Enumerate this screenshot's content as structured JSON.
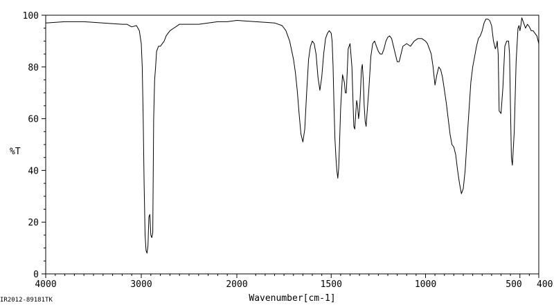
{
  "footer_id": "IR2012-89181TK",
  "chart_data": {
    "type": "line",
    "title": "",
    "xlabel": "Wavenumber[cm-1]",
    "ylabel": "%T",
    "xlim": [
      4000,
      400
    ],
    "ylim": [
      0,
      100
    ],
    "x_reversed": true,
    "grid": false,
    "x_ticks": [
      4000,
      3000,
      2000,
      1500,
      1000,
      500,
      400
    ],
    "x_tick_labels": [
      "4000",
      "3000",
      "2000",
      "1500",
      "1000",
      "500",
      "400"
    ],
    "y_ticks": [
      0,
      20,
      40,
      60,
      80,
      100
    ],
    "y_tick_labels": [
      "0",
      "20",
      "40",
      "60",
      "80",
      "100"
    ],
    "line_color": "#000000",
    "series": [
      {
        "x": [
          4000,
          3800,
          3600,
          3400,
          3200,
          3150,
          3100,
          3050,
          3020,
          3000,
          2990,
          2980,
          2970,
          2960,
          2950,
          2940,
          2930,
          2920,
          2910,
          2900,
          2890,
          2880,
          2870,
          2860,
          2850,
          2840,
          2820,
          2800,
          2780,
          2760,
          2740,
          2700,
          2600,
          2500,
          2400,
          2300,
          2200,
          2100,
          2000,
          1900,
          1800,
          1760,
          1740,
          1720,
          1700,
          1690,
          1680,
          1670,
          1660,
          1650,
          1640,
          1630,
          1620,
          1610,
          1600,
          1590,
          1580,
          1570,
          1560,
          1550,
          1540,
          1530,
          1520,
          1510,
          1500,
          1495,
          1490,
          1485,
          1480,
          1475,
          1470,
          1465,
          1460,
          1455,
          1450,
          1440,
          1430,
          1425,
          1420,
          1410,
          1400,
          1390,
          1380,
          1375,
          1370,
          1365,
          1360,
          1355,
          1350,
          1345,
          1340,
          1335,
          1330,
          1325,
          1320,
          1315,
          1310,
          1300,
          1290,
          1280,
          1270,
          1260,
          1250,
          1240,
          1230,
          1220,
          1210,
          1200,
          1190,
          1180,
          1170,
          1160,
          1150,
          1140,
          1130,
          1120,
          1100,
          1080,
          1060,
          1040,
          1020,
          1000,
          990,
          980,
          970,
          960,
          950,
          940,
          930,
          920,
          910,
          900,
          890,
          880,
          870,
          860,
          850,
          840,
          830,
          820,
          810,
          800,
          790,
          780,
          770,
          760,
          750,
          740,
          730,
          720,
          710,
          700,
          690,
          680,
          670,
          660,
          650,
          640,
          630,
          625,
          620,
          615,
          610,
          600,
          590,
          580,
          570,
          560,
          555,
          550,
          545,
          540,
          530,
          520,
          510,
          505,
          500,
          495,
          490,
          480,
          470,
          460,
          450,
          440,
          430,
          420,
          410,
          400
        ],
        "y": [
          97,
          97.5,
          97.5,
          97,
          96.5,
          96.5,
          95.5,
          96,
          94,
          89,
          80,
          60,
          35,
          15,
          9,
          8,
          11,
          22,
          23,
          15,
          14,
          16,
          60,
          75,
          80,
          86,
          88,
          88,
          89,
          90,
          92,
          94,
          96.5,
          96.5,
          96.5,
          97,
          97.5,
          97.5,
          98,
          97.5,
          97,
          96,
          94,
          90,
          83,
          78,
          71,
          62,
          54,
          51,
          56,
          70,
          83,
          88,
          90,
          89,
          85,
          76,
          71,
          76,
          85,
          91,
          93,
          94,
          93,
          90,
          80,
          65,
          52,
          45,
          40,
          37,
          41,
          52,
          64,
          77,
          74,
          70,
          70,
          87,
          89,
          80,
          57,
          56,
          62,
          67,
          65,
          60,
          63,
          70,
          79,
          81,
          75,
          65,
          59,
          57,
          62,
          72,
          84,
          89,
          90,
          88,
          86,
          85,
          85,
          87,
          90,
          91.5,
          92,
          91,
          88,
          85,
          82,
          82,
          85,
          88,
          89,
          88,
          90,
          91,
          91,
          90,
          89,
          87,
          85,
          80,
          73,
          77,
          80,
          79,
          76,
          71,
          66,
          60,
          54,
          50,
          49,
          46,
          40,
          35,
          31,
          33,
          40,
          52,
          63,
          74,
          80,
          84,
          88,
          91,
          92,
          94,
          97,
          98.5,
          98.5,
          98,
          96,
          90,
          87,
          88,
          90,
          85,
          63,
          62,
          72,
          88,
          90,
          90,
          85,
          65,
          45,
          42,
          55,
          82,
          95,
          96,
          94,
          96,
          99,
          97,
          95,
          96.5,
          95.5,
          94,
          94,
          93,
          92,
          89
        ]
      }
    ]
  }
}
